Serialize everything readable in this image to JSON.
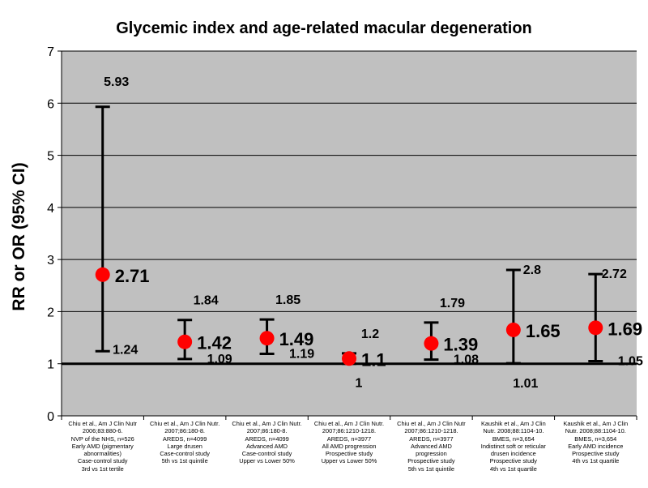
{
  "chart_data": {
    "type": "scatter",
    "title": "Glycemic index and age-related macular degeneration",
    "ylabel": "RR or OR (95% CI)",
    "xlabel": "",
    "ylim": [
      0,
      7
    ],
    "yticks": [
      "0",
      "1",
      "2",
      "3",
      "4",
      "5",
      "6",
      "7"
    ],
    "reference_line": 1,
    "grid": false,
    "colors": {
      "plot_bg": "#c0c0c0",
      "point": "#ff0000",
      "error_bar": "#000000"
    },
    "points": [
      {
        "estimate": 2.71,
        "lower": 1.24,
        "upper": 5.93,
        "estimate_label": "2.71",
        "lower_label": "1.24",
        "upper_label": "5.93",
        "study": [
          "Chiu et al., Am J Clin Nutr",
          "2006;83:880-6.",
          "NVP of the NHS, n=526",
          "Early AMD (pigmentary",
          "abnormalities)",
          "Case-control study",
          "3rd vs 1st tertile"
        ]
      },
      {
        "estimate": 1.42,
        "lower": 1.09,
        "upper": 1.84,
        "estimate_label": "1.42",
        "lower_label": "1.09",
        "upper_label": "1.84",
        "study": [
          "Chiu et al., Am J Clin Nutr.",
          "2007;86:180-8.",
          "AREDS, n=4099",
          "Large drusen",
          "Case-control study",
          "5th vs 1st quintile"
        ]
      },
      {
        "estimate": 1.49,
        "lower": 1.19,
        "upper": 1.85,
        "estimate_label": "1.49",
        "lower_label": "1.19",
        "upper_label": "1.85",
        "study": [
          "Chiu et al., Am J Clin Nutr.",
          "2007;86:180-8.",
          "AREDS, n=4099",
          "Advanced AMD",
          "Case-control study",
          "Upper vs Lower 50%"
        ]
      },
      {
        "estimate": 1.1,
        "lower": 1.0,
        "upper": 1.2,
        "estimate_label": "1.1",
        "lower_label": "1",
        "upper_label": "1.2",
        "study": [
          "Chiu et al., Am J Clin Nutr.",
          "2007;86:1210-1218.",
          "AREDS, n=3977",
          "All AMD progression",
          "Prospective study",
          "Upper vs Lower 50%"
        ]
      },
      {
        "estimate": 1.39,
        "lower": 1.08,
        "upper": 1.79,
        "estimate_label": "1.39",
        "lower_label": "1.08",
        "upper_label": "1.79",
        "study": [
          "Chiu et al., Am J Clin Nutr",
          "2007;86:1210-1218.",
          "AREDS, n=3977",
          "Advanced AMD",
          "progression",
          "Prospective study",
          "5th vs 1st quintile"
        ]
      },
      {
        "estimate": 1.65,
        "lower": 1.01,
        "upper": 2.8,
        "estimate_label": "1.65",
        "lower_label": "1.01",
        "upper_label": "2.8",
        "study": [
          "Kaushik et al., Am J Clin",
          "Nutr. 2008;88:1104-10.",
          "BMES, n=3,654",
          "Indistinct soft or reticular",
          "drusen incidence",
          "Prospective study",
          "4th vs 1st quartile"
        ]
      },
      {
        "estimate": 1.69,
        "lower": 1.05,
        "upper": 2.72,
        "estimate_label": "1.69",
        "lower_label": "1.05",
        "upper_label": "2.72",
        "study": [
          "Kaushik et al., Am J Clin",
          "Nutr. 2008;88:1104-10.",
          "BMES, n=3,654",
          "Early AMD incidence",
          "Prospective study",
          "4th vs 1st quartile"
        ]
      }
    ]
  }
}
